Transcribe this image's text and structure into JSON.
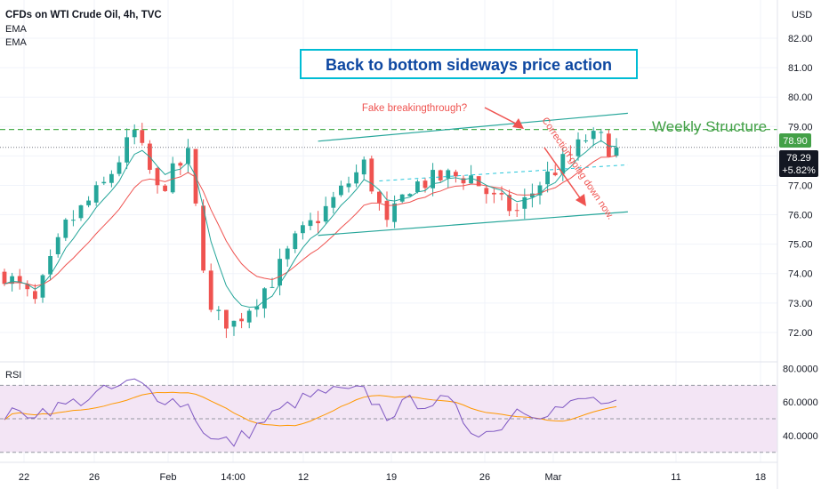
{
  "header": {
    "title": "CFDs on WTI Crude Oil, 4h, TVC",
    "indicators": [
      "EMA",
      "EMA"
    ],
    "currency": "USD"
  },
  "rsi_label": "RSI",
  "colors": {
    "up": "#26a69a",
    "down": "#ef5350",
    "ema_fast": "#26a69a",
    "ema_slow": "#ef5350",
    "weekly": "#4caf50",
    "channel": "#26a69a",
    "rsi_line": "#7e57c2",
    "rsi_ma": "#ff9800",
    "rsi_band": "#f3e5f5",
    "price_label_bg": "#131722",
    "weekly_label_bg": "#43a047",
    "arrow": "#ef5350",
    "annotation_text": "#0d47a1",
    "annotation_border": "#00bcd4"
  },
  "annotations": {
    "headline": "Back to bottom sideways price action",
    "fake_breakout": "Fake breakingthrough?",
    "weekly_structure": "Weekly Structure",
    "correction": "Correction going down now."
  },
  "price_labels": {
    "weekly_value": "78.90",
    "last_value": "78.29",
    "last_change": "+5.82%"
  },
  "chart_data": [
    {
      "type": "candlestick",
      "title": "CFDs on WTI Crude Oil, 4h, TVC",
      "x_ticks": [
        "22",
        "26",
        "Feb",
        "14:00",
        "12",
        "19",
        "26",
        "Mar",
        "11",
        "18"
      ],
      "y_ticks": [
        "82.00",
        "81.00",
        "80.00",
        "79.00",
        "78.00",
        "77.00",
        "76.00",
        "75.00",
        "74.00",
        "73.00",
        "72.00"
      ],
      "ylim": [
        71.0,
        83.3
      ],
      "path": [
        [
          0,
          74.0
        ],
        [
          4,
          73.0
        ],
        [
          8,
          75.6
        ],
        [
          13,
          77.0
        ],
        [
          17,
          78.8
        ],
        [
          20,
          76.8
        ],
        [
          24,
          78.0
        ],
        [
          27,
          72.6
        ],
        [
          30,
          72.3
        ],
        [
          35,
          73.8
        ],
        [
          38,
          75.1
        ],
        [
          42,
          76.2
        ],
        [
          47,
          77.7
        ],
        [
          50,
          75.6
        ],
        [
          53,
          77.0
        ],
        [
          58,
          77.3
        ],
        [
          61,
          77.3
        ],
        [
          64,
          76.5
        ],
        [
          67,
          76.1
        ],
        [
          70,
          77.1
        ],
        [
          74,
          78.0
        ],
        [
          76,
          78.6
        ],
        [
          78,
          78.55
        ],
        [
          80,
          78.1
        ]
      ],
      "weekly_structure_level": 78.9,
      "last_price": 78.29,
      "last_change_pct": 5.82
    },
    {
      "type": "line",
      "title": "RSI",
      "y_ticks": [
        "80.0000",
        "60.0000",
        "40.0000"
      ],
      "ylim": [
        24,
        84
      ],
      "rsi_path": [
        [
          0,
          52
        ],
        [
          4,
          54
        ],
        [
          8,
          58
        ],
        [
          13,
          66
        ],
        [
          17,
          72
        ],
        [
          20,
          64
        ],
        [
          24,
          58
        ],
        [
          27,
          37
        ],
        [
          30,
          36
        ],
        [
          35,
          52
        ],
        [
          38,
          60
        ],
        [
          42,
          66
        ],
        [
          47,
          66
        ],
        [
          50,
          52
        ],
        [
          53,
          60
        ],
        [
          58,
          60
        ],
        [
          61,
          44
        ],
        [
          64,
          42
        ],
        [
          67,
          56
        ],
        [
          70,
          54
        ],
        [
          74,
          58
        ],
        [
          76,
          62
        ],
        [
          78,
          60
        ],
        [
          80,
          57
        ]
      ],
      "reference_levels": [
        70,
        50,
        30
      ]
    }
  ]
}
